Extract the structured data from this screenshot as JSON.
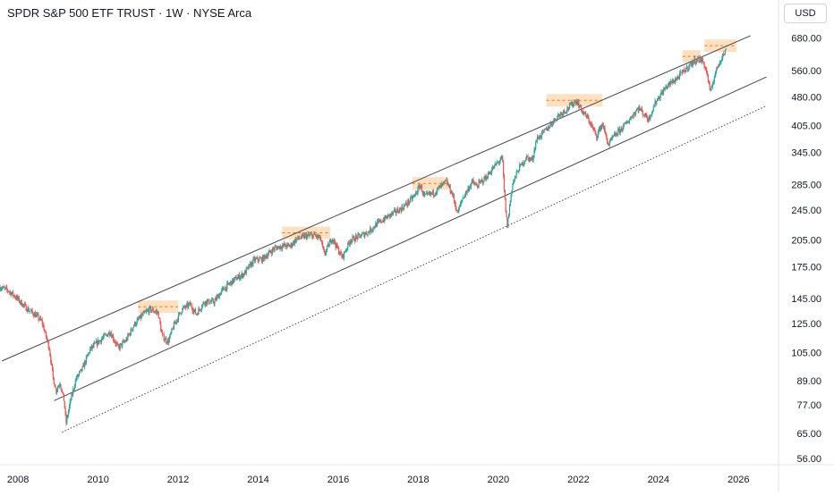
{
  "header": {
    "title": "SPDR S&P 500 ETF TRUST · 1W · NYSE Arca",
    "currency": "USD"
  },
  "chart_data": {
    "type": "candlestick",
    "title": "SPDR S&P 500 ETF TRUST · 1W · NYSE Arca",
    "currency": "USD",
    "scale": "log",
    "x_ticks": [
      "2008",
      "2010",
      "2012",
      "2014",
      "2016",
      "2018",
      "2020",
      "2022",
      "2024",
      "2026"
    ],
    "y_ticks": [
      "680.00",
      "560.00",
      "480.00",
      "405.00",
      "345.00",
      "285.00",
      "245.00",
      "205.00",
      "175.00",
      "145.00",
      "125.00",
      "105.00",
      "89.00",
      "77.00",
      "65.00",
      "56.00"
    ],
    "xlim": [
      2007.55,
      2027.0
    ],
    "ylim": [
      54,
      735
    ],
    "colors": {
      "up": "#26a69a",
      "down": "#ef5350",
      "channel": "#434651",
      "highlight": "#ffcc99",
      "highlight_line": "#f57c00",
      "grid": "#e0e3eb"
    },
    "series_points": [
      [
        2007.55,
        155
      ],
      [
        2007.75,
        152
      ],
      [
        2007.95,
        146
      ],
      [
        2008.2,
        137
      ],
      [
        2008.45,
        131
      ],
      [
        2008.6,
        126
      ],
      [
        2008.78,
        108
      ],
      [
        2008.88,
        90
      ],
      [
        2008.95,
        84
      ],
      [
        2009.05,
        88
      ],
      [
        2009.15,
        79
      ],
      [
        2009.2,
        69
      ],
      [
        2009.3,
        78
      ],
      [
        2009.45,
        90
      ],
      [
        2009.6,
        95
      ],
      [
        2009.8,
        107
      ],
      [
        2010.0,
        112
      ],
      [
        2010.3,
        119
      ],
      [
        2010.5,
        108
      ],
      [
        2010.7,
        113
      ],
      [
        2010.9,
        124
      ],
      [
        2011.1,
        131
      ],
      [
        2011.3,
        136
      ],
      [
        2011.5,
        133
      ],
      [
        2011.6,
        116
      ],
      [
        2011.75,
        112
      ],
      [
        2011.9,
        124
      ],
      [
        2012.1,
        136
      ],
      [
        2012.3,
        140
      ],
      [
        2012.45,
        132
      ],
      [
        2012.65,
        142
      ],
      [
        2012.9,
        142
      ],
      [
        2013.1,
        152
      ],
      [
        2013.4,
        162
      ],
      [
        2013.65,
        168
      ],
      [
        2013.9,
        182
      ],
      [
        2014.1,
        183
      ],
      [
        2014.4,
        195
      ],
      [
        2014.6,
        198
      ],
      [
        2014.8,
        198
      ],
      [
        2014.95,
        206
      ],
      [
        2015.2,
        210
      ],
      [
        2015.4,
        211
      ],
      [
        2015.55,
        207
      ],
      [
        2015.65,
        188
      ],
      [
        2015.85,
        208
      ],
      [
        2016.0,
        193
      ],
      [
        2016.1,
        185
      ],
      [
        2016.3,
        205
      ],
      [
        2016.5,
        209
      ],
      [
        2016.75,
        215
      ],
      [
        2016.95,
        225
      ],
      [
        2017.3,
        238
      ],
      [
        2017.6,
        248
      ],
      [
        2017.9,
        266
      ],
      [
        2018.05,
        284
      ],
      [
        2018.15,
        265
      ],
      [
        2018.4,
        272
      ],
      [
        2018.7,
        290
      ],
      [
        2018.85,
        270
      ],
      [
        2018.98,
        240
      ],
      [
        2019.1,
        262
      ],
      [
        2019.35,
        290
      ],
      [
        2019.45,
        282
      ],
      [
        2019.7,
        298
      ],
      [
        2019.95,
        322
      ],
      [
        2020.1,
        334
      ],
      [
        2020.15,
        270
      ],
      [
        2020.22,
        222
      ],
      [
        2020.35,
        285
      ],
      [
        2020.5,
        312
      ],
      [
        2020.7,
        335
      ],
      [
        2020.85,
        330
      ],
      [
        2020.95,
        372
      ],
      [
        2021.2,
        395
      ],
      [
        2021.5,
        430
      ],
      [
        2021.7,
        445
      ],
      [
        2021.95,
        470
      ],
      [
        2022.1,
        440
      ],
      [
        2022.25,
        420
      ],
      [
        2022.45,
        380
      ],
      [
        2022.6,
        410
      ],
      [
        2022.75,
        360
      ],
      [
        2022.85,
        375
      ],
      [
        2023.0,
        390
      ],
      [
        2023.2,
        410
      ],
      [
        2023.5,
        450
      ],
      [
        2023.75,
        420
      ],
      [
        2023.95,
        470
      ],
      [
        2024.2,
        510
      ],
      [
        2024.5,
        540
      ],
      [
        2024.75,
        575
      ],
      [
        2024.95,
        600
      ],
      [
        2025.1,
        595
      ],
      [
        2025.2,
        560
      ],
      [
        2025.3,
        490
      ],
      [
        2025.4,
        545
      ],
      [
        2025.55,
        600
      ],
      [
        2025.7,
        635
      ]
    ],
    "upper_channel": [
      [
        2007.6,
        100
      ],
      [
        2026.3,
        690
      ]
    ],
    "lower_channel": [
      [
        2008.9,
        79
      ],
      [
        2026.7,
        540
      ]
    ],
    "dotted_channel": [
      [
        2009.1,
        65.5
      ],
      [
        2026.7,
        455
      ]
    ],
    "highlight_zones": [
      {
        "x0": 2011.0,
        "x1": 2012.0,
        "level": 138
      },
      {
        "x0": 2014.6,
        "x1": 2015.8,
        "level": 214
      },
      {
        "x0": 2017.85,
        "x1": 2018.75,
        "level": 287
      },
      {
        "x0": 2021.2,
        "x1": 2022.6,
        "level": 470
      },
      {
        "x0": 2024.6,
        "x1": 2025.05,
        "level": 610
      },
      {
        "x0": 2025.15,
        "x1": 2025.95,
        "level": 650
      }
    ]
  }
}
